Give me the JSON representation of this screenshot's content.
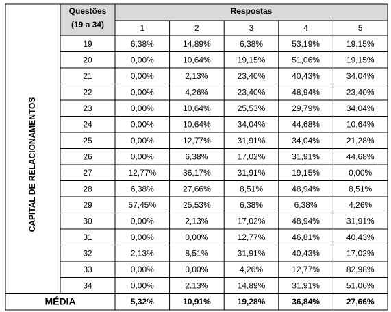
{
  "side_label": "CAPITAL DE RELACIONAMENTOS",
  "header": {
    "questions_line1": "Questões",
    "questions_line2": "(19 a 34)",
    "responses_title": "Respostas",
    "response_columns": [
      "1",
      "2",
      "3",
      "4",
      "5"
    ]
  },
  "rows": [
    [
      "19",
      "6,38%",
      "14,89%",
      "6,38%",
      "53,19%",
      "19,15%"
    ],
    [
      "20",
      "0,00%",
      "10,64%",
      "19,15%",
      "51,06%",
      "19,15%"
    ],
    [
      "21",
      "0,00%",
      "2,13%",
      "23,40%",
      "40,43%",
      "34,04%"
    ],
    [
      "22",
      "0,00%",
      "4,26%",
      "23,40%",
      "48,94%",
      "23,40%"
    ],
    [
      "23",
      "0,00%",
      "10,64%",
      "25,53%",
      "29,79%",
      "34,04%"
    ],
    [
      "24",
      "0,00%",
      "10,64%",
      "34,04%",
      "44,68%",
      "10,64%"
    ],
    [
      "25",
      "0,00%",
      "12,77%",
      "31,91%",
      "34,04%",
      "21,28%"
    ],
    [
      "26",
      "0,00%",
      "6,38%",
      "17,02%",
      "31,91%",
      "44,68%"
    ],
    [
      "27",
      "12,77%",
      "36,17%",
      "31,91%",
      "19,15%",
      "0,00%"
    ],
    [
      "28",
      "6,38%",
      "27,66%",
      "8,51%",
      "48,94%",
      "8,51%"
    ],
    [
      "29",
      "57,45%",
      "25,53%",
      "6,38%",
      "6,38%",
      "4,26%"
    ],
    [
      "30",
      "0,00%",
      "2,13%",
      "17,02%",
      "48,94%",
      "31,91%"
    ],
    [
      "31",
      "0,00%",
      "0,00%",
      "12,77%",
      "46,81%",
      "40,43%"
    ],
    [
      "32",
      "2,13%",
      "8,51%",
      "31,91%",
      "40,43%",
      "17,02%"
    ],
    [
      "33",
      "0,00%",
      "0,00%",
      "4,26%",
      "12,77%",
      "82,98%"
    ],
    [
      "34",
      "0,00%",
      "2,13%",
      "14,89%",
      "31,91%",
      "51,06%"
    ]
  ],
  "footer": {
    "label": "MÉDIA",
    "values": [
      "5,32%",
      "10,91%",
      "19,28%",
      "36,84%",
      "27,66%"
    ]
  }
}
